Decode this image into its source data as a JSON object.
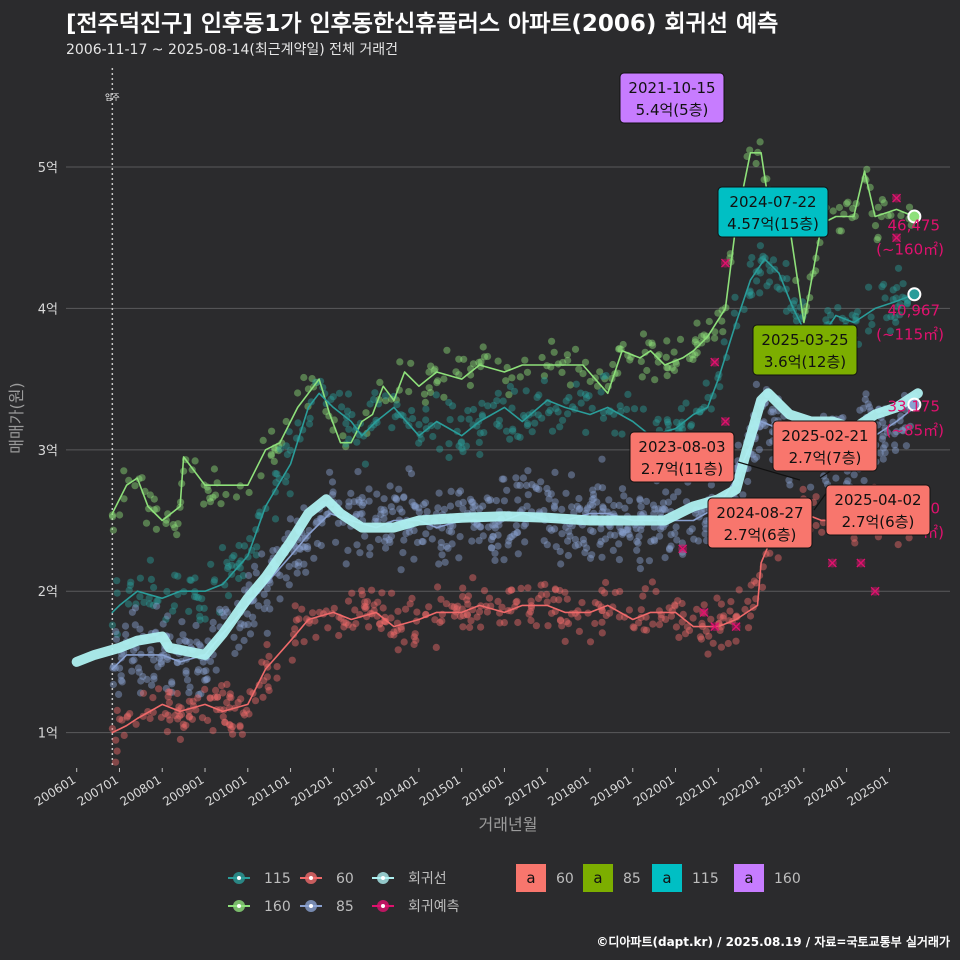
{
  "header": {
    "title": "[전주덕진구] 인후동1가 인후동한신휴플러스 아파트(2006) 회귀선 예측",
    "subtitle": "2006-11-17 ~ 2025-08-14(최근계약일) 전체 거래건"
  },
  "credit": "©디아파트(dapt.kr) / 2025.08.19 / 자료=국토교통부 실거래가",
  "colors": {
    "background": "#2b2b2d",
    "s115": "#2a9d9a",
    "s160": "#8ee07a",
    "s60": "#f06a6a",
    "s85": "#8aa1d0",
    "regression": "#aef0f0",
    "forecast": "#e0116e",
    "tag60": "#f8766d",
    "tag85": "#7cae00",
    "tag115": "#00bfc4",
    "tag160": "#c77cff"
  },
  "chart_data": {
    "type": "scatter",
    "xlabel": "거래년월",
    "ylabel": "매매가(원)",
    "ylim": [
      0.75,
      5.7
    ],
    "xlim": [
      "2005-10",
      "2026-06"
    ],
    "x_ticks": [
      "200601",
      "200701",
      "200801",
      "200901",
      "201001",
      "201101",
      "201201",
      "201301",
      "201401",
      "201501",
      "201601",
      "201701",
      "201801",
      "201901",
      "202001",
      "202101",
      "202201",
      "202301",
      "202401",
      "202501"
    ],
    "y_ticks": [
      {
        "value": 1,
        "label": "1억"
      },
      {
        "value": 2,
        "label": "2억"
      },
      {
        "value": 3,
        "label": "3억"
      },
      {
        "value": 4,
        "label": "4억"
      },
      {
        "value": 5,
        "label": "5억"
      }
    ],
    "grid": true,
    "marker_line": {
      "date": "2006-11",
      "label": "입주"
    },
    "series": [
      {
        "name": "160",
        "color_key": "s160",
        "points": [
          [
            "2006-11",
            2.55
          ],
          [
            "2007-03",
            2.75
          ],
          [
            "2007-06",
            2.8
          ],
          [
            "2007-09",
            2.6
          ],
          [
            "2008-01",
            2.5
          ],
          [
            "2008-06",
            2.6
          ],
          [
            "2008-07",
            2.95
          ],
          [
            "2008-10",
            2.85
          ],
          [
            "2009-01",
            2.75
          ],
          [
            "2009-06",
            2.75
          ],
          [
            "2010-01",
            2.75
          ],
          [
            "2010-06",
            3.0
          ],
          [
            "2010-10",
            3.05
          ],
          [
            "2011-03",
            3.3
          ],
          [
            "2011-06",
            3.4
          ],
          [
            "2011-09",
            3.5
          ],
          [
            "2011-12",
            3.25
          ],
          [
            "2012-03",
            3.05
          ],
          [
            "2012-06",
            3.05
          ],
          [
            "2012-09",
            3.2
          ],
          [
            "2012-12",
            3.25
          ],
          [
            "2013-03",
            3.45
          ],
          [
            "2013-06",
            3.35
          ],
          [
            "2013-09",
            3.55
          ],
          [
            "2014-01",
            3.45
          ],
          [
            "2014-06",
            3.55
          ],
          [
            "2015-01",
            3.5
          ],
          [
            "2015-06",
            3.6
          ],
          [
            "2016-01",
            3.55
          ],
          [
            "2016-06",
            3.6
          ],
          [
            "2017-01",
            3.6
          ],
          [
            "2017-06",
            3.6
          ],
          [
            "2017-11",
            3.6
          ],
          [
            "2018-06",
            3.4
          ],
          [
            "2018-10",
            3.7
          ],
          [
            "2019-03",
            3.65
          ],
          [
            "2019-06",
            3.7
          ],
          [
            "2019-10",
            3.6
          ],
          [
            "2020-03",
            3.65
          ],
          [
            "2020-06",
            3.7
          ],
          [
            "2020-10",
            3.8
          ],
          [
            "2021-03",
            4.0
          ],
          [
            "2021-06",
            4.6
          ],
          [
            "2021-10",
            5.1
          ],
          [
            "2022-01",
            5.1
          ],
          [
            "2022-04",
            4.6
          ],
          [
            "2022-08",
            4.75
          ],
          [
            "2023-01",
            3.9
          ],
          [
            "2023-06",
            4.6
          ],
          [
            "2023-10",
            4.65
          ],
          [
            "2024-03",
            4.65
          ],
          [
            "2024-06",
            4.97
          ],
          [
            "2024-09",
            4.65
          ],
          [
            "2025-03",
            4.7
          ],
          [
            "2025-08",
            4.65
          ]
        ]
      },
      {
        "name": "115",
        "color_key": "s115",
        "points": [
          [
            "2006-11",
            1.85
          ],
          [
            "2007-01",
            1.9
          ],
          [
            "2007-06",
            2.0
          ],
          [
            "2008-01",
            1.95
          ],
          [
            "2008-06",
            2.0
          ],
          [
            "2009-01",
            2.0
          ],
          [
            "2009-06",
            2.05
          ],
          [
            "2010-01",
            2.25
          ],
          [
            "2010-06",
            2.6
          ],
          [
            "2011-01",
            2.9
          ],
          [
            "2011-06",
            3.3
          ],
          [
            "2011-09",
            3.4
          ],
          [
            "2012-01",
            3.3
          ],
          [
            "2012-06",
            3.2
          ],
          [
            "2012-09",
            3.1
          ],
          [
            "2013-01",
            3.2
          ],
          [
            "2013-06",
            3.3
          ],
          [
            "2014-01",
            3.1
          ],
          [
            "2014-06",
            3.2
          ],
          [
            "2015-01",
            3.1
          ],
          [
            "2015-06",
            3.2
          ],
          [
            "2016-01",
            3.3
          ],
          [
            "2016-06",
            3.2
          ],
          [
            "2017-01",
            3.35
          ],
          [
            "2017-06",
            3.3
          ],
          [
            "2018-01",
            3.25
          ],
          [
            "2018-06",
            3.3
          ],
          [
            "2019-01",
            3.2
          ],
          [
            "2019-06",
            3.1
          ],
          [
            "2020-01",
            3.15
          ],
          [
            "2020-06",
            3.25
          ],
          [
            "2020-10",
            3.3
          ],
          [
            "2021-01",
            3.5
          ],
          [
            "2021-06",
            3.9
          ],
          [
            "2021-10",
            4.2
          ],
          [
            "2022-02",
            4.35
          ],
          [
            "2022-06",
            4.25
          ],
          [
            "2022-10",
            4.0
          ],
          [
            "2023-02",
            3.8
          ],
          [
            "2023-06",
            3.8
          ],
          [
            "2023-10",
            3.95
          ],
          [
            "2024-03",
            3.9
          ],
          [
            "2024-09",
            4.0
          ],
          [
            "2025-03",
            4.05
          ],
          [
            "2025-08",
            4.1
          ]
        ]
      },
      {
        "name": "85",
        "color_key": "s85",
        "points": [
          [
            "2006-11",
            1.45
          ],
          [
            "2007-03",
            1.55
          ],
          [
            "2008-01",
            1.55
          ],
          [
            "2008-06",
            1.5
          ],
          [
            "2009-01",
            1.55
          ],
          [
            "2009-06",
            1.7
          ],
          [
            "2010-01",
            1.9
          ],
          [
            "2010-06",
            2.05
          ],
          [
            "2011-01",
            2.25
          ],
          [
            "2011-06",
            2.4
          ],
          [
            "2011-12",
            2.55
          ],
          [
            "2012-06",
            2.5
          ],
          [
            "2013-01",
            2.45
          ],
          [
            "2013-06",
            2.5
          ],
          [
            "2014-01",
            2.5
          ],
          [
            "2014-06",
            2.45
          ],
          [
            "2015-01",
            2.5
          ],
          [
            "2015-06",
            2.5
          ],
          [
            "2016-01",
            2.5
          ],
          [
            "2016-06",
            2.55
          ],
          [
            "2017-01",
            2.5
          ],
          [
            "2017-06",
            2.5
          ],
          [
            "2018-01",
            2.55
          ],
          [
            "2018-06",
            2.55
          ],
          [
            "2019-01",
            2.5
          ],
          [
            "2019-06",
            2.5
          ],
          [
            "2020-01",
            2.5
          ],
          [
            "2020-06",
            2.5
          ],
          [
            "2021-01",
            2.6
          ],
          [
            "2021-06",
            2.8
          ],
          [
            "2022-01",
            3.2
          ],
          [
            "2022-06",
            3.15
          ],
          [
            "2022-10",
            3.0
          ],
          [
            "2023-03",
            3.0
          ],
          [
            "2023-09",
            3.05
          ],
          [
            "2024-03",
            3.0
          ],
          [
            "2024-09",
            3.1
          ],
          [
            "2025-03",
            3.2
          ],
          [
            "2025-08",
            3.3
          ]
        ]
      },
      {
        "name": "60",
        "color_key": "s60",
        "points": [
          [
            "2006-11",
            1.0
          ],
          [
            "2007-03",
            1.05
          ],
          [
            "2007-06",
            1.1
          ],
          [
            "2008-01",
            1.2
          ],
          [
            "2008-06",
            1.15
          ],
          [
            "2009-01",
            1.2
          ],
          [
            "2009-06",
            1.15
          ],
          [
            "2010-01",
            1.2
          ],
          [
            "2010-06",
            1.45
          ],
          [
            "2011-01",
            1.65
          ],
          [
            "2011-06",
            1.8
          ],
          [
            "2012-01",
            1.85
          ],
          [
            "2012-06",
            1.8
          ],
          [
            "2013-01",
            1.85
          ],
          [
            "2013-06",
            1.75
          ],
          [
            "2014-01",
            1.8
          ],
          [
            "2014-06",
            1.85
          ],
          [
            "2015-01",
            1.85
          ],
          [
            "2015-06",
            1.9
          ],
          [
            "2016-01",
            1.85
          ],
          [
            "2016-06",
            1.9
          ],
          [
            "2017-01",
            1.9
          ],
          [
            "2017-06",
            1.85
          ],
          [
            "2018-01",
            1.85
          ],
          [
            "2018-06",
            1.9
          ],
          [
            "2019-01",
            1.8
          ],
          [
            "2019-06",
            1.85
          ],
          [
            "2020-01",
            1.85
          ],
          [
            "2020-06",
            1.75
          ],
          [
            "2021-01",
            1.75
          ],
          [
            "2021-06",
            1.8
          ],
          [
            "2021-12",
            1.9
          ],
          [
            "2022-01",
            2.2
          ],
          [
            "2022-06",
            2.5
          ],
          [
            "2023-01",
            2.55
          ],
          [
            "2023-06",
            2.5
          ],
          [
            "2024-01",
            2.5
          ],
          [
            "2024-06",
            2.55
          ],
          [
            "2025-01",
            2.6
          ],
          [
            "2025-08",
            2.6
          ]
        ]
      },
      {
        "name": "회귀선",
        "color_key": "regression",
        "points": [
          [
            "2006-01",
            1.5
          ],
          [
            "2006-06",
            1.55
          ],
          [
            "2007-01",
            1.6
          ],
          [
            "2007-06",
            1.65
          ],
          [
            "2008-01",
            1.68
          ],
          [
            "2008-03",
            1.6
          ],
          [
            "2009-01",
            1.55
          ],
          [
            "2009-06",
            1.7
          ],
          [
            "2010-01",
            1.95
          ],
          [
            "2010-06",
            2.1
          ],
          [
            "2011-01",
            2.35
          ],
          [
            "2011-06",
            2.55
          ],
          [
            "2011-11",
            2.65
          ],
          [
            "2012-03",
            2.55
          ],
          [
            "2012-09",
            2.45
          ],
          [
            "2013-06",
            2.45
          ],
          [
            "2014-01",
            2.5
          ],
          [
            "2015-01",
            2.52
          ],
          [
            "2016-01",
            2.53
          ],
          [
            "2017-01",
            2.52
          ],
          [
            "2018-01",
            2.5
          ],
          [
            "2018-10",
            2.5
          ],
          [
            "2019-10",
            2.5
          ],
          [
            "2020-06",
            2.6
          ],
          [
            "2021-01",
            2.65
          ],
          [
            "2021-06",
            2.72
          ],
          [
            "2021-09",
            3.0
          ],
          [
            "2022-01",
            3.35
          ],
          [
            "2022-03",
            3.4
          ],
          [
            "2022-09",
            3.25
          ],
          [
            "2023-03",
            3.2
          ],
          [
            "2023-09",
            3.2
          ],
          [
            "2024-03",
            3.15
          ],
          [
            "2024-09",
            3.25
          ],
          [
            "2025-03",
            3.3
          ],
          [
            "2025-09",
            3.4
          ]
        ]
      }
    ],
    "end_points": [
      {
        "series": "160",
        "date": "2025-08",
        "value": 4.65
      },
      {
        "series": "115",
        "date": "2025-08",
        "value": 4.1
      },
      {
        "series": "85",
        "date": "2025-08",
        "value": 3.32
      }
    ],
    "forecast_points": [
      [
        "2021-03",
        4.32
      ],
      [
        "2021-03",
        3.2
      ],
      [
        "2020-06",
        2.85
      ],
      [
        "2020-03",
        2.3
      ],
      [
        "2020-09",
        1.85
      ],
      [
        "2020-12",
        1.75
      ],
      [
        "2021-06",
        1.75
      ],
      [
        "2023-09",
        2.2
      ],
      [
        "2024-05",
        2.2
      ],
      [
        "2024-09",
        2.0
      ],
      [
        "2025-03",
        4.5
      ],
      [
        "2025-03",
        4.78
      ],
      [
        "2020-12",
        3.62
      ]
    ],
    "forecast_labels": [
      {
        "value_text": "46,475",
        "area_text": "(~160㎡)",
        "anchor_value": 4.55
      },
      {
        "value_text": "40,967",
        "area_text": "(~115㎡)",
        "anchor_value": 3.95
      },
      {
        "value_text": "33,175",
        "area_text": "(~85㎡)",
        "anchor_value": 3.27
      }
    ],
    "callouts": [
      {
        "date_text": "2021-10-15",
        "price_text": "5.4억(5층)",
        "color_key": "tag160",
        "at_date": "2021-10",
        "at_value": 5.35
      },
      {
        "date_text": "2024-07-22",
        "price_text": "4.57억(15층)",
        "color_key": "tag115",
        "at_date": "2024-07",
        "at_value": 4.57
      },
      {
        "date_text": "2025-03-25",
        "price_text": "3.6억(12층)",
        "color_key": "tag85",
        "at_date": "2025-03",
        "at_value": 3.6
      },
      {
        "date_text": "2023-08-03",
        "price_text": "2.7억(11층)",
        "color_key": "tag60",
        "at_date": "2023-08",
        "at_value": 2.7
      },
      {
        "date_text": "2025-02-21",
        "price_text": "2.7억(7층)",
        "color_key": "tag60",
        "at_date": "2025-02",
        "at_value": 2.7
      },
      {
        "date_text": "2024-08-27",
        "price_text": "2.7억(6층)",
        "color_key": "tag60",
        "at_date": "2024-08",
        "at_value": 2.7
      },
      {
        "date_text": "2025-04-02",
        "price_text": "2.7억(6층)",
        "color_key": "tag60",
        "at_date": "2025-04",
        "at_value": 2.7
      }
    ],
    "hidden_label_fragments": [
      "0",
      "㎡)"
    ],
    "legend": {
      "position": "bottom",
      "series_items": [
        {
          "label": "115",
          "color_key": "s115"
        },
        {
          "label": "60",
          "color_key": "s60"
        },
        {
          "label": "회귀선",
          "color_key": "regression"
        },
        {
          "label": "160",
          "color_key": "s160"
        },
        {
          "label": "85",
          "color_key": "s85"
        },
        {
          "label": "회귀예측",
          "color_key": "forecast"
        }
      ],
      "tag_items": [
        {
          "glyph": "a",
          "label": "60",
          "color_key": "tag60"
        },
        {
          "glyph": "a",
          "label": "85",
          "color_key": "tag85"
        },
        {
          "glyph": "a",
          "label": "115",
          "color_key": "tag115"
        },
        {
          "glyph": "a",
          "label": "160",
          "color_key": "tag160"
        }
      ]
    }
  }
}
